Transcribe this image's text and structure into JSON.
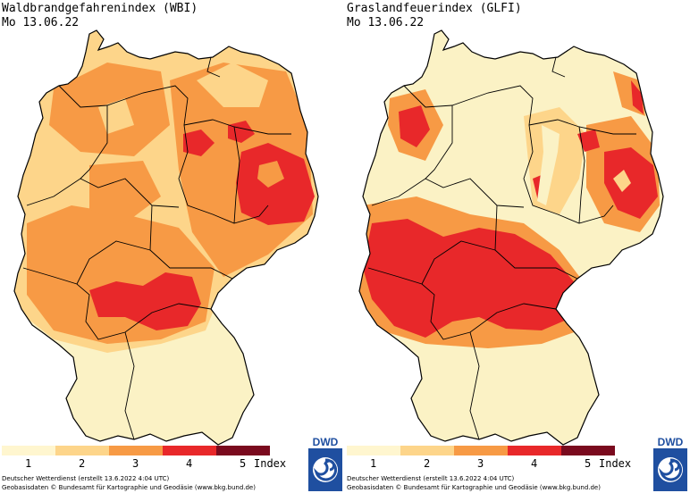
{
  "left": {
    "title": "Waldbrandgefahrenindex (WBI)",
    "date": "Mo 13.06.22"
  },
  "right": {
    "title": "Graslandfeuerindex (GLFI)",
    "date": "Mo 13.06.22"
  },
  "legend": {
    "colors": [
      "#fff6cf",
      "#fdd58a",
      "#f79a45",
      "#e8282a",
      "#7a0a1e"
    ],
    "labels": [
      "1",
      "2",
      "3",
      "4",
      "5",
      "Index"
    ]
  },
  "footer": {
    "line1": "Deutscher Wetterdienst (erstellt 13.6.2022 4:04 UTC)",
    "line2": "Geobasisdaten © Bundesamt für Kartographie und Geodäsie (www.bkg.bund.de)"
  },
  "logo": {
    "text": "DWD",
    "color": "#1f4fa0"
  },
  "map_colors": {
    "level1": "#fbf2c5",
    "level2": "#fdd58a",
    "level3": "#f79a45",
    "level4": "#e8282a",
    "border": "#000000"
  }
}
